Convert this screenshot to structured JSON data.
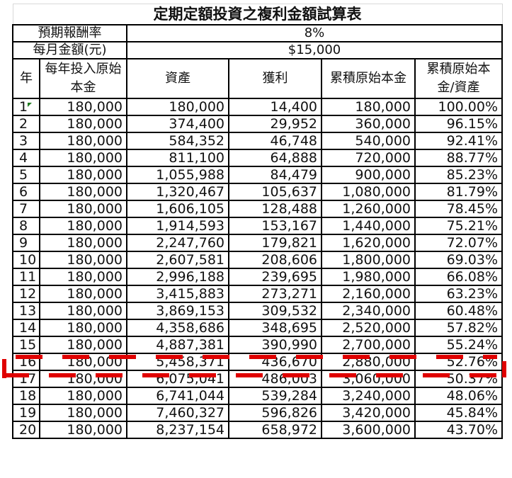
{
  "sheet": {
    "title": "定期定額投資之複利金額試算表",
    "params": [
      {
        "label": "預期報酬率",
        "value": "8%"
      },
      {
        "label": "每月金額(元)",
        "value": "$15,000"
      }
    ],
    "columns": [
      "年",
      "每年投入原始本金",
      "資產",
      "獲利",
      "累積原始本金",
      "累積原始本金/資產"
    ],
    "rows": [
      [
        "1",
        "180,000",
        "180,000",
        "14,400",
        "180,000",
        "100.00%"
      ],
      [
        "2",
        "180,000",
        "374,400",
        "29,952",
        "360,000",
        "96.15%"
      ],
      [
        "3",
        "180,000",
        "584,352",
        "46,748",
        "540,000",
        "92.41%"
      ],
      [
        "4",
        "180,000",
        "811,100",
        "64,888",
        "720,000",
        "88.77%"
      ],
      [
        "5",
        "180,000",
        "1,055,988",
        "84,479",
        "900,000",
        "85.23%"
      ],
      [
        "6",
        "180,000",
        "1,320,467",
        "105,637",
        "1,080,000",
        "81.79%"
      ],
      [
        "7",
        "180,000",
        "1,606,105",
        "128,488",
        "1,260,000",
        "78.45%"
      ],
      [
        "8",
        "180,000",
        "1,914,593",
        "153,167",
        "1,440,000",
        "75.21%"
      ],
      [
        "9",
        "180,000",
        "2,247,760",
        "179,821",
        "1,620,000",
        "72.07%"
      ],
      [
        "10",
        "180,000",
        "2,607,581",
        "208,606",
        "1,800,000",
        "69.03%"
      ],
      [
        "11",
        "180,000",
        "2,996,188",
        "239,695",
        "1,980,000",
        "66.08%"
      ],
      [
        "12",
        "180,000",
        "3,415,883",
        "273,271",
        "2,160,000",
        "63.23%"
      ],
      [
        "13",
        "180,000",
        "3,869,153",
        "309,532",
        "2,340,000",
        "60.48%"
      ],
      [
        "14",
        "180,000",
        "4,358,686",
        "348,695",
        "2,520,000",
        "57.82%"
      ],
      [
        "15",
        "180,000",
        "4,887,381",
        "390,990",
        "2,700,000",
        "55.24%"
      ],
      [
        "16",
        "180,000",
        "5,458,371",
        "436,670",
        "2,880,000",
        "52.76%"
      ],
      [
        "17",
        "180,000",
        "6,075,041",
        "486,003",
        "3,060,000",
        "50.37%"
      ],
      [
        "18",
        "180,000",
        "6,741,044",
        "539,284",
        "3,240,000",
        "48.06%"
      ],
      [
        "19",
        "180,000",
        "7,460,327",
        "596,826",
        "3,420,000",
        "45.84%"
      ],
      [
        "20",
        "180,000",
        "8,237,154",
        "658,972",
        "3,600,000",
        "43.70%"
      ]
    ],
    "highlight": {
      "row_year": "15",
      "color": "#e00000",
      "style": "dashed-red-box"
    }
  }
}
